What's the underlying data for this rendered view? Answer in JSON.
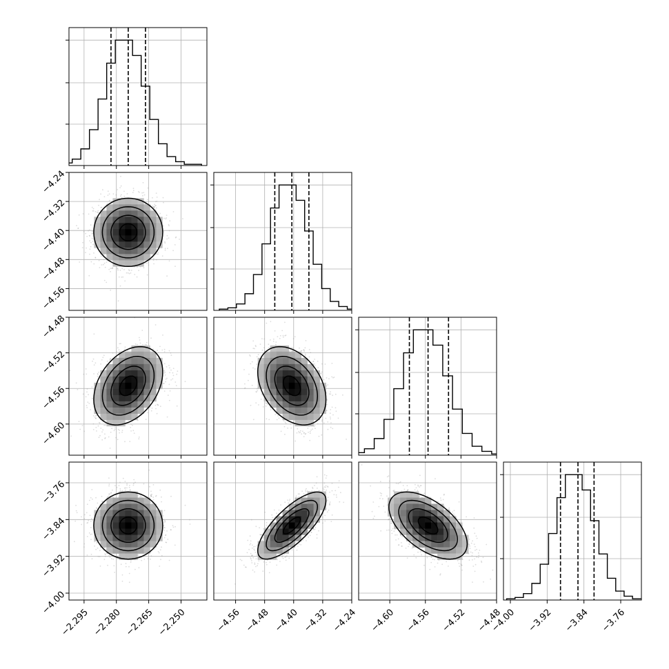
{
  "chart_data": {
    "type": "corner",
    "parameters": [
      {
        "range": [
          -2.302,
          -2.238
        ],
        "median": -2.2745,
        "q16": -2.2825,
        "q84": -2.2665,
        "ticks": [
          -2.295,
          -2.28,
          -2.265,
          -2.25
        ],
        "tick_labels": [
          "−2.295",
          "−2.280",
          "−2.265",
          "−2.250"
        ]
      },
      {
        "range": [
          -4.62,
          -4.24
        ],
        "median": -4.405,
        "q16": -4.452,
        "q84": -4.358,
        "ticks": [
          -4.56,
          -4.48,
          -4.4,
          -4.32,
          -4.24
        ],
        "tick_labels": [
          "−4.56",
          "−4.48",
          "−4.40",
          "−4.32",
          "−4.24"
        ]
      },
      {
        "range": [
          -4.635,
          -4.48
        ],
        "median": -4.557,
        "q16": -4.578,
        "q84": -4.534,
        "ticks": [
          -4.6,
          -4.56,
          -4.52,
          -4.48
        ],
        "tick_labels": [
          "−4.60",
          "−4.56",
          "−4.52",
          "−4.48"
        ]
      },
      {
        "range": [
          -4.015,
          -3.715
        ],
        "median": -3.853,
        "q16": -3.891,
        "q84": -3.818,
        "ticks": [
          -4.0,
          -3.92,
          -3.84,
          -3.76
        ],
        "tick_labels": [
          "−4.00",
          "−3.92",
          "−3.84",
          "−3.76"
        ]
      }
    ],
    "histograms": [
      [
        1,
        2,
        5,
        13,
        28,
        52,
        80,
        98,
        98,
        86,
        62,
        36,
        17,
        7,
        3,
        1,
        1
      ],
      [
        1,
        2,
        5,
        13,
        28,
        52,
        80,
        98,
        98,
        86,
        62,
        36,
        17,
        7,
        3,
        1,
        1
      ],
      [
        1,
        2,
        5,
        13,
        28,
        52,
        80,
        98,
        98,
        86,
        62,
        36,
        17,
        7,
        3,
        1,
        1
      ],
      [
        1,
        2,
        5,
        13,
        28,
        52,
        80,
        98,
        98,
        86,
        62,
        36,
        17,
        7,
        3,
        1,
        1
      ]
    ],
    "correlations": [
      {
        "i": 1,
        "j": 0,
        "r": 0.0
      },
      {
        "i": 2,
        "j": 0,
        "r": 0.35
      },
      {
        "i": 2,
        "j": 1,
        "r": -0.35
      },
      {
        "i": 3,
        "j": 0,
        "r": 0.0
      },
      {
        "i": 3,
        "j": 1,
        "r": 0.75
      },
      {
        "i": 3,
        "j": 2,
        "r": -0.55
      }
    ],
    "quantile_lines": [
      0.16,
      0.5,
      0.84
    ],
    "grid": true,
    "colors": {
      "line": "#000000",
      "grid": "#b0b0b0",
      "scatter": "#9a9a9a"
    }
  }
}
